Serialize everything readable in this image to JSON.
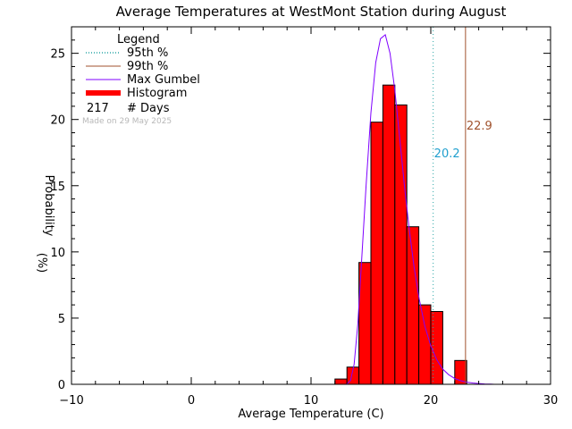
{
  "chart_data": {
    "type": "bar",
    "title": "Average Temperatures at WestMont Station during August",
    "xlabel": "Average Temperature (C)",
    "ylabel": "Probability",
    "ylabel_unit": "(%)",
    "xlim": [
      -10,
      30
    ],
    "ylim": [
      0,
      27
    ],
    "xticks": [
      -10,
      0,
      10,
      20,
      30
    ],
    "xtick_labels": [
      "−10",
      "0",
      "10",
      "20",
      "30"
    ],
    "yticks": [
      0,
      5,
      10,
      15,
      20,
      25
    ],
    "ytick_labels": [
      "0",
      "5",
      "10",
      "15",
      "20",
      "25"
    ],
    "grid": false,
    "legend_position": "top-left",
    "legend": {
      "title": "Legend",
      "entries": [
        {
          "label": "95th %",
          "style": "dotted",
          "color": "#2aa6a6"
        },
        {
          "label": "99th %",
          "style": "solid",
          "color": "#a0522d"
        },
        {
          "label": "Max Gumbel",
          "style": "solid",
          "color": "#7f00ff"
        },
        {
          "label": "Histogram",
          "style": "thick",
          "color": "#ff0000"
        }
      ],
      "days_count": "217",
      "days_label": "# Days"
    },
    "watermark": "Made on 29 May 2025",
    "histogram": {
      "bin_edges": [
        12,
        13,
        14,
        15,
        16,
        17,
        18,
        19,
        20,
        21,
        22,
        23
      ],
      "values": [
        0.4,
        1.3,
        9.2,
        19.8,
        22.6,
        21.1,
        11.9,
        6.0,
        5.5,
        0,
        1.8
      ],
      "color": "#ff0000"
    },
    "percentile_95": {
      "value": 20.2,
      "label": "20.2",
      "color": "#2aa6a6",
      "label_color": "#1f9fce"
    },
    "percentile_99": {
      "value": 22.9,
      "label": "22.9",
      "color": "#a0522d"
    },
    "gumbel_curve": {
      "color": "#7f00ff",
      "points": [
        [
          12.8,
          0.0
        ],
        [
          13.0,
          0.02
        ],
        [
          13.3,
          0.3
        ],
        [
          13.6,
          1.5
        ],
        [
          13.9,
          4.5
        ],
        [
          14.2,
          9.0
        ],
        [
          14.6,
          15.0
        ],
        [
          15.0,
          20.5
        ],
        [
          15.4,
          24.3
        ],
        [
          15.8,
          26.1
        ],
        [
          16.2,
          26.4
        ],
        [
          16.6,
          25.0
        ],
        [
          17.0,
          22.2
        ],
        [
          17.4,
          18.6
        ],
        [
          17.8,
          15.0
        ],
        [
          18.2,
          11.7
        ],
        [
          18.6,
          8.9
        ],
        [
          19.0,
          6.6
        ],
        [
          19.5,
          4.4
        ],
        [
          20.0,
          2.9
        ],
        [
          20.5,
          1.85
        ],
        [
          21.0,
          1.15
        ],
        [
          21.5,
          0.72
        ],
        [
          22.0,
          0.44
        ],
        [
          22.5,
          0.27
        ],
        [
          23.0,
          0.16
        ],
        [
          23.5,
          0.1
        ],
        [
          24.0,
          0.06
        ],
        [
          24.5,
          0.03
        ],
        [
          25.0,
          0.02
        ],
        [
          25.3,
          0.0
        ]
      ]
    }
  }
}
